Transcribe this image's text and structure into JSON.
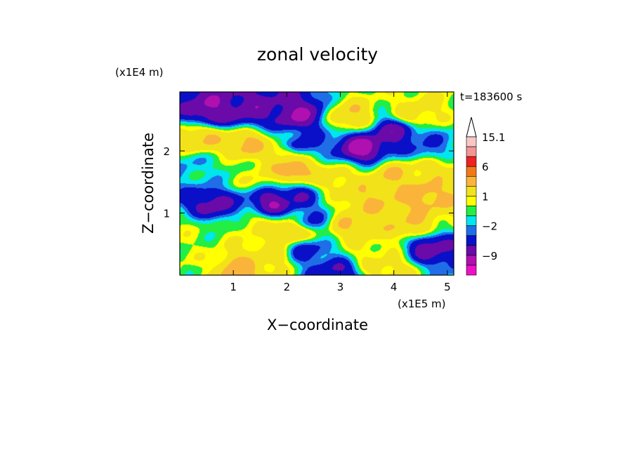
{
  "chart_data": {
    "type": "heatmap",
    "title": "zonal velocity",
    "xlabel": "X−coordinate",
    "ylabel": "Z−coordinate",
    "x_scale_label": "(x1E5 m)",
    "y_scale_label": "(x1E4 m)",
    "time_label": "t=183600 s",
    "xlim": [
      0,
      5.12
    ],
    "ylim": [
      0,
      2.95
    ],
    "x_ticks": [
      1,
      2,
      3,
      4,
      5
    ],
    "y_ticks": [
      1,
      2
    ],
    "colorbar": {
      "tick_labels": [
        {
          "text": "15.1",
          "value": 15.1
        },
        {
          "text": "6",
          "value": 6
        },
        {
          "text": "1",
          "value": 1
        },
        {
          "text": "−2",
          "value": -2
        },
        {
          "text": "−9",
          "value": -9
        }
      ],
      "levels": [
        {
          "value": 15.1,
          "color": "#f9c6c6"
        },
        {
          "value": 12,
          "color": "#f29595"
        },
        {
          "value": 9,
          "color": "#ee2222"
        },
        {
          "value": 6,
          "color": "#f07a1a"
        },
        {
          "value": 4,
          "color": "#fbb43a"
        },
        {
          "value": 2,
          "color": "#f2e21a"
        },
        {
          "value": 1,
          "color": "#ffff00"
        },
        {
          "value": 0,
          "color": "#22ee44"
        },
        {
          "value": -1,
          "color": "#00e5ee"
        },
        {
          "value": -2,
          "color": "#1f6ee8"
        },
        {
          "value": -4,
          "color": "#0a10c8"
        },
        {
          "value": -6,
          "color": "#6a0aa8"
        },
        {
          "value": -9,
          "color": "#b010b0"
        },
        {
          "value": -12,
          "color": "#ee10c8"
        }
      ]
    },
    "features": [
      {
        "x": 0.6,
        "z": 2.65,
        "u": -6
      },
      {
        "x": 1.3,
        "z": 2.65,
        "u": -5
      },
      {
        "x": 2.2,
        "z": 2.58,
        "u": -6
      },
      {
        "x": 3.2,
        "z": 2.55,
        "u": 4
      },
      {
        "x": 4.4,
        "z": 2.6,
        "u": 3
      },
      {
        "x": 0.4,
        "z": 2.2,
        "u": 4
      },
      {
        "x": 1.2,
        "z": 2.12,
        "u": 5
      },
      {
        "x": 1.9,
        "z": 1.95,
        "u": 3
      },
      {
        "x": 3.4,
        "z": 2.05,
        "u": -7
      },
      {
        "x": 4.0,
        "z": 2.3,
        "u": -5
      },
      {
        "x": 4.6,
        "z": 2.05,
        "u": -2
      },
      {
        "x": 0.2,
        "z": 1.75,
        "u": -1
      },
      {
        "x": 0.8,
        "z": 1.7,
        "u": 0
      },
      {
        "x": 1.4,
        "z": 1.6,
        "u": 2
      },
      {
        "x": 2.9,
        "z": 1.55,
        "u": 3
      },
      {
        "x": 4.0,
        "z": 1.6,
        "u": 4
      },
      {
        "x": 4.7,
        "z": 1.7,
        "u": 3
      },
      {
        "x": 0.6,
        "z": 1.15,
        "u": -5
      },
      {
        "x": 1.75,
        "z": 1.18,
        "u": -6
      },
      {
        "x": 2.15,
        "z": 1.25,
        "u": -4
      },
      {
        "x": 3.5,
        "z": 1.2,
        "u": 4
      },
      {
        "x": 4.5,
        "z": 1.3,
        "u": 5
      },
      {
        "x": 0.1,
        "z": 0.75,
        "u": 1
      },
      {
        "x": 1.4,
        "z": 0.8,
        "u": 2
      },
      {
        "x": 2.45,
        "z": 0.9,
        "u": -2
      },
      {
        "x": 3.2,
        "z": 0.8,
        "u": 4
      },
      {
        "x": 4.3,
        "z": 0.8,
        "u": 4
      },
      {
        "x": 0.4,
        "z": 0.45,
        "u": 1
      },
      {
        "x": 1.7,
        "z": 0.3,
        "u": 3
      },
      {
        "x": 2.35,
        "z": 0.4,
        "u": -3
      },
      {
        "x": 3.6,
        "z": 0.35,
        "u": 2
      },
      {
        "x": 4.65,
        "z": 0.45,
        "u": -5
      },
      {
        "x": 0.25,
        "z": 0.08,
        "u": 1
      },
      {
        "x": 1.1,
        "z": 0.1,
        "u": 5
      },
      {
        "x": 2.9,
        "z": 0.05,
        "u": -4
      },
      {
        "x": 3.9,
        "z": 0.1,
        "u": 3
      },
      {
        "x": 2.1,
        "z": 1.7,
        "u": 6
      },
      {
        "x": 2.25,
        "z": 2.1,
        "u": -3
      },
      {
        "x": 2.05,
        "z": 0.7,
        "u": 5
      }
    ]
  }
}
